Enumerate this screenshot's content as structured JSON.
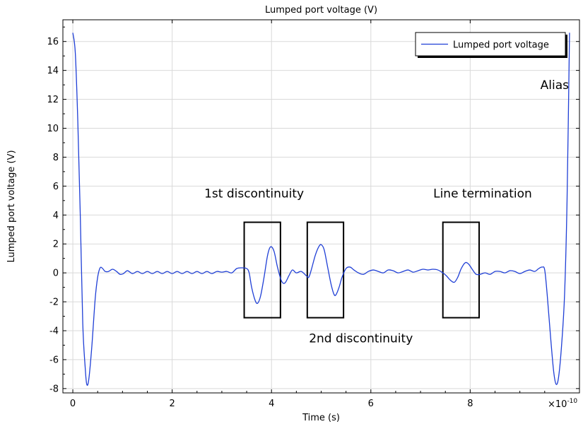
{
  "chart_data": {
    "type": "line",
    "title": "Lumped port voltage (V)",
    "xlabel": "Time (s)",
    "ylabel": "Lumped port voltage (V)",
    "x_multiplier": "×10",
    "x_multiplier_exp": "-10",
    "xlim": [
      -0.2,
      10.2
    ],
    "ylim": [
      -8.3,
      17.5
    ],
    "x_ticks": [
      0,
      2,
      4,
      6,
      8
    ],
    "x_tick_labels": [
      "0",
      "2",
      "4",
      "6",
      "8"
    ],
    "y_ticks": [
      -8,
      -6,
      -4,
      -2,
      0,
      2,
      4,
      6,
      8,
      10,
      12,
      14,
      16
    ],
    "y_tick_labels": [
      "-8",
      "-6",
      "-4",
      "-2",
      "0",
      "2",
      "4",
      "6",
      "8",
      "10",
      "12",
      "14",
      "16"
    ],
    "grid": true,
    "legend_position": "top-right",
    "series": [
      {
        "name": "Lumped port voltage",
        "color": "#1f3fd6",
        "points": [
          [
            0.0,
            16.6
          ],
          [
            0.05,
            15.2
          ],
          [
            0.1,
            10.5
          ],
          [
            0.15,
            4.0
          ],
          [
            0.2,
            -3.5
          ],
          [
            0.25,
            -6.6
          ],
          [
            0.28,
            -7.7
          ],
          [
            0.32,
            -7.4
          ],
          [
            0.38,
            -5.2
          ],
          [
            0.45,
            -1.8
          ],
          [
            0.5,
            -0.3
          ],
          [
            0.55,
            0.35
          ],
          [
            0.6,
            0.3
          ],
          [
            0.65,
            0.1
          ],
          [
            0.72,
            0.1
          ],
          [
            0.8,
            0.25
          ],
          [
            0.88,
            0.1
          ],
          [
            0.95,
            -0.1
          ],
          [
            1.02,
            -0.05
          ],
          [
            1.1,
            0.15
          ],
          [
            1.2,
            -0.05
          ],
          [
            1.3,
            0.1
          ],
          [
            1.4,
            -0.05
          ],
          [
            1.5,
            0.1
          ],
          [
            1.6,
            -0.05
          ],
          [
            1.7,
            0.1
          ],
          [
            1.8,
            -0.05
          ],
          [
            1.9,
            0.1
          ],
          [
            2.0,
            -0.05
          ],
          [
            2.1,
            0.1
          ],
          [
            2.2,
            -0.05
          ],
          [
            2.3,
            0.1
          ],
          [
            2.4,
            -0.05
          ],
          [
            2.5,
            0.1
          ],
          [
            2.6,
            -0.05
          ],
          [
            2.7,
            0.1
          ],
          [
            2.8,
            -0.05
          ],
          [
            2.9,
            0.1
          ],
          [
            3.0,
            0.05
          ],
          [
            3.1,
            0.1
          ],
          [
            3.2,
            0.0
          ],
          [
            3.3,
            0.3
          ],
          [
            3.4,
            0.35
          ],
          [
            3.5,
            0.3
          ],
          [
            3.55,
            0.0
          ],
          [
            3.6,
            -1.0
          ],
          [
            3.67,
            -1.9
          ],
          [
            3.72,
            -2.1
          ],
          [
            3.78,
            -1.6
          ],
          [
            3.85,
            -0.3
          ],
          [
            3.92,
            1.2
          ],
          [
            3.98,
            1.8
          ],
          [
            4.05,
            1.5
          ],
          [
            4.12,
            0.4
          ],
          [
            4.2,
            -0.55
          ],
          [
            4.27,
            -0.7
          ],
          [
            4.35,
            -0.2
          ],
          [
            4.42,
            0.2
          ],
          [
            4.5,
            0.0
          ],
          [
            4.6,
            0.1
          ],
          [
            4.7,
            -0.2
          ],
          [
            4.75,
            -0.3
          ],
          [
            4.8,
            0.2
          ],
          [
            4.88,
            1.2
          ],
          [
            4.95,
            1.8
          ],
          [
            5.0,
            1.95
          ],
          [
            5.06,
            1.6
          ],
          [
            5.13,
            0.4
          ],
          [
            5.2,
            -0.8
          ],
          [
            5.26,
            -1.5
          ],
          [
            5.3,
            -1.5
          ],
          [
            5.36,
            -1.0
          ],
          [
            5.42,
            -0.3
          ],
          [
            5.5,
            0.3
          ],
          [
            5.58,
            0.4
          ],
          [
            5.66,
            0.2
          ],
          [
            5.75,
            0.0
          ],
          [
            5.85,
            -0.1
          ],
          [
            5.95,
            0.1
          ],
          [
            6.05,
            0.2
          ],
          [
            6.15,
            0.1
          ],
          [
            6.25,
            0.0
          ],
          [
            6.35,
            0.2
          ],
          [
            6.45,
            0.15
          ],
          [
            6.55,
            0.0
          ],
          [
            6.65,
            0.1
          ],
          [
            6.75,
            0.2
          ],
          [
            6.85,
            0.05
          ],
          [
            6.95,
            0.15
          ],
          [
            7.05,
            0.25
          ],
          [
            7.15,
            0.2
          ],
          [
            7.25,
            0.25
          ],
          [
            7.35,
            0.2
          ],
          [
            7.45,
            0.0
          ],
          [
            7.52,
            -0.2
          ],
          [
            7.6,
            -0.5
          ],
          [
            7.68,
            -0.65
          ],
          [
            7.75,
            -0.3
          ],
          [
            7.82,
            0.3
          ],
          [
            7.9,
            0.7
          ],
          [
            7.97,
            0.6
          ],
          [
            8.05,
            0.2
          ],
          [
            8.12,
            -0.1
          ],
          [
            8.2,
            -0.1
          ],
          [
            8.3,
            0.0
          ],
          [
            8.4,
            -0.1
          ],
          [
            8.5,
            0.1
          ],
          [
            8.6,
            0.1
          ],
          [
            8.7,
            0.0
          ],
          [
            8.8,
            0.15
          ],
          [
            8.9,
            0.1
          ],
          [
            9.0,
            -0.05
          ],
          [
            9.1,
            0.1
          ],
          [
            9.2,
            0.2
          ],
          [
            9.3,
            0.1
          ],
          [
            9.38,
            0.3
          ],
          [
            9.45,
            0.4
          ],
          [
            9.5,
            0.2
          ],
          [
            9.55,
            -1.5
          ],
          [
            9.62,
            -4.5
          ],
          [
            9.68,
            -6.8
          ],
          [
            9.73,
            -7.7
          ],
          [
            9.78,
            -7.2
          ],
          [
            9.84,
            -5.0
          ],
          [
            9.9,
            -1.5
          ],
          [
            9.95,
            5.0
          ],
          [
            10.0,
            16.6
          ]
        ]
      }
    ],
    "annotations": [
      {
        "text": "Alias",
        "x": 9.7,
        "y": 12.7
      },
      {
        "text": "1st discontinuity",
        "x": 3.65,
        "y": 5.2
      },
      {
        "text": "Line termination",
        "x": 8.25,
        "y": 5.2
      },
      {
        "text": "2nd discontinuity",
        "x": 5.8,
        "y": -4.8
      }
    ],
    "highlight_boxes": [
      {
        "x": [
          3.45,
          4.18
        ],
        "y": [
          -3.1,
          3.5
        ]
      },
      {
        "x": [
          4.72,
          5.45
        ],
        "y": [
          -3.1,
          3.5
        ]
      },
      {
        "x": [
          7.45,
          8.18
        ],
        "y": [
          -3.1,
          3.5
        ]
      }
    ]
  }
}
